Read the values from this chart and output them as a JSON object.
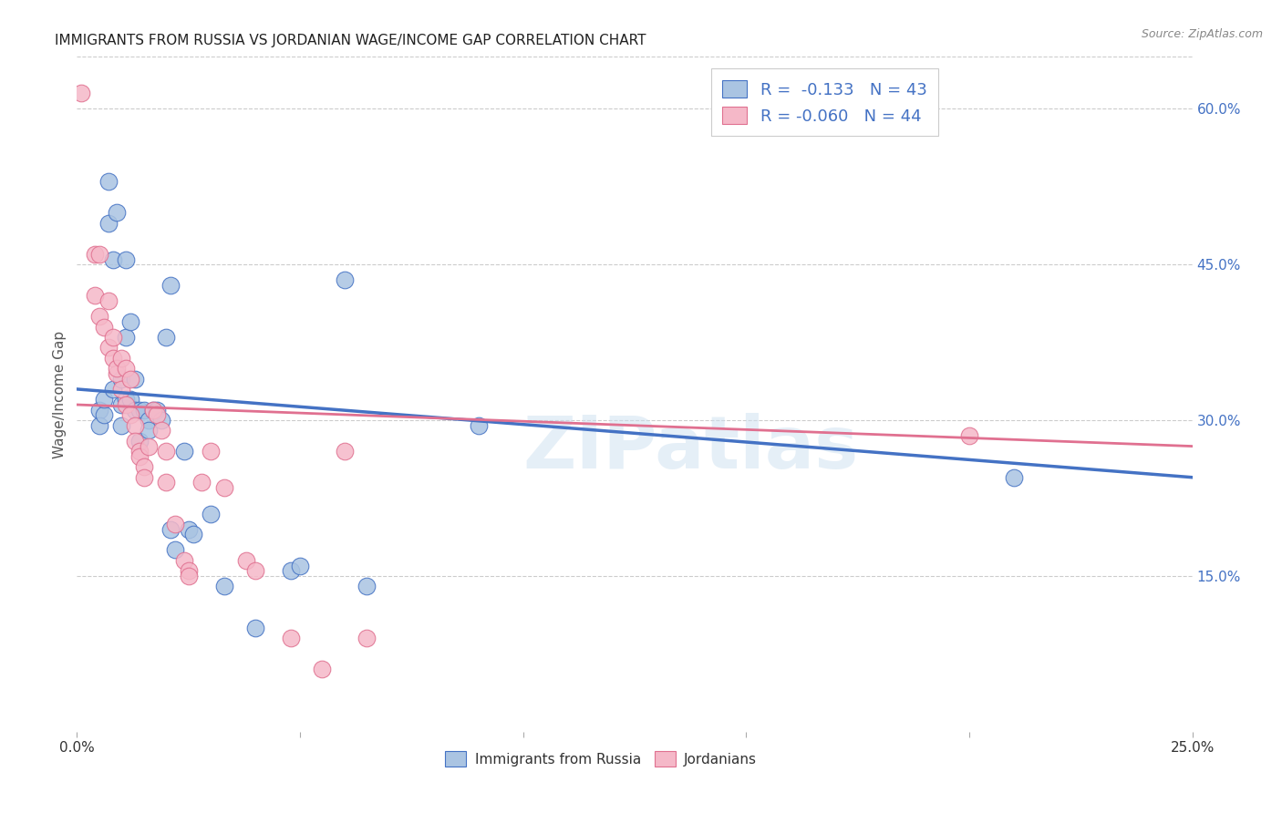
{
  "title": "IMMIGRANTS FROM RUSSIA VS JORDANIAN WAGE/INCOME GAP CORRELATION CHART",
  "source": "Source: ZipAtlas.com",
  "ylabel": "Wage/Income Gap",
  "right_yticks": [
    "60.0%",
    "45.0%",
    "30.0%",
    "15.0%"
  ],
  "right_ytick_vals": [
    0.6,
    0.45,
    0.3,
    0.15
  ],
  "legend_blue_R": "R =  -0.133",
  "legend_pink_R": "R = -0.060",
  "legend_blue_N": "N = 43",
  "legend_pink_N": "N = 44",
  "legend_blue_label": "Immigrants from Russia",
  "legend_pink_label": "Jordanians",
  "watermark": "ZIPatlas",
  "blue_scatter": [
    [
      0.005,
      0.31
    ],
    [
      0.005,
      0.295
    ],
    [
      0.006,
      0.305
    ],
    [
      0.006,
      0.32
    ],
    [
      0.007,
      0.53
    ],
    [
      0.007,
      0.49
    ],
    [
      0.008,
      0.455
    ],
    [
      0.008,
      0.33
    ],
    [
      0.009,
      0.5
    ],
    [
      0.01,
      0.315
    ],
    [
      0.01,
      0.34
    ],
    [
      0.01,
      0.295
    ],
    [
      0.011,
      0.455
    ],
    [
      0.011,
      0.32
    ],
    [
      0.011,
      0.38
    ],
    [
      0.012,
      0.395
    ],
    [
      0.012,
      0.32
    ],
    [
      0.013,
      0.31
    ],
    [
      0.013,
      0.34
    ],
    [
      0.014,
      0.31
    ],
    [
      0.014,
      0.28
    ],
    [
      0.015,
      0.31
    ],
    [
      0.016,
      0.3
    ],
    [
      0.016,
      0.29
    ],
    [
      0.017,
      0.31
    ],
    [
      0.018,
      0.31
    ],
    [
      0.019,
      0.3
    ],
    [
      0.02,
      0.38
    ],
    [
      0.021,
      0.43
    ],
    [
      0.021,
      0.195
    ],
    [
      0.022,
      0.175
    ],
    [
      0.024,
      0.27
    ],
    [
      0.025,
      0.195
    ],
    [
      0.026,
      0.19
    ],
    [
      0.03,
      0.21
    ],
    [
      0.033,
      0.14
    ],
    [
      0.04,
      0.1
    ],
    [
      0.048,
      0.155
    ],
    [
      0.05,
      0.16
    ],
    [
      0.06,
      0.435
    ],
    [
      0.065,
      0.14
    ],
    [
      0.09,
      0.295
    ],
    [
      0.21,
      0.245
    ]
  ],
  "pink_scatter": [
    [
      0.001,
      0.615
    ],
    [
      0.004,
      0.46
    ],
    [
      0.004,
      0.42
    ],
    [
      0.005,
      0.4
    ],
    [
      0.005,
      0.46
    ],
    [
      0.006,
      0.39
    ],
    [
      0.007,
      0.37
    ],
    [
      0.007,
      0.415
    ],
    [
      0.008,
      0.38
    ],
    [
      0.008,
      0.36
    ],
    [
      0.009,
      0.345
    ],
    [
      0.009,
      0.35
    ],
    [
      0.01,
      0.33
    ],
    [
      0.01,
      0.36
    ],
    [
      0.011,
      0.35
    ],
    [
      0.011,
      0.315
    ],
    [
      0.012,
      0.305
    ],
    [
      0.012,
      0.34
    ],
    [
      0.013,
      0.295
    ],
    [
      0.013,
      0.28
    ],
    [
      0.014,
      0.27
    ],
    [
      0.014,
      0.265
    ],
    [
      0.015,
      0.255
    ],
    [
      0.015,
      0.245
    ],
    [
      0.016,
      0.275
    ],
    [
      0.017,
      0.31
    ],
    [
      0.018,
      0.305
    ],
    [
      0.019,
      0.29
    ],
    [
      0.02,
      0.27
    ],
    [
      0.02,
      0.24
    ],
    [
      0.022,
      0.2
    ],
    [
      0.024,
      0.165
    ],
    [
      0.025,
      0.155
    ],
    [
      0.025,
      0.15
    ],
    [
      0.028,
      0.24
    ],
    [
      0.03,
      0.27
    ],
    [
      0.033,
      0.235
    ],
    [
      0.038,
      0.165
    ],
    [
      0.04,
      0.155
    ],
    [
      0.048,
      0.09
    ],
    [
      0.055,
      0.06
    ],
    [
      0.06,
      0.27
    ],
    [
      0.065,
      0.09
    ],
    [
      0.2,
      0.285
    ]
  ],
  "blue_line_x": [
    0.0,
    0.25
  ],
  "blue_line_y": [
    0.33,
    0.245
  ],
  "pink_line_x": [
    0.0,
    0.25
  ],
  "pink_line_y": [
    0.315,
    0.275
  ],
  "xmin": 0.0,
  "xmax": 0.25,
  "ymin": 0.0,
  "ymax": 0.65,
  "blue_color": "#aac4e2",
  "pink_color": "#f5b8c8",
  "blue_line_color": "#4472c4",
  "pink_line_color": "#e07090",
  "grid_color": "#cccccc",
  "background_color": "#ffffff"
}
